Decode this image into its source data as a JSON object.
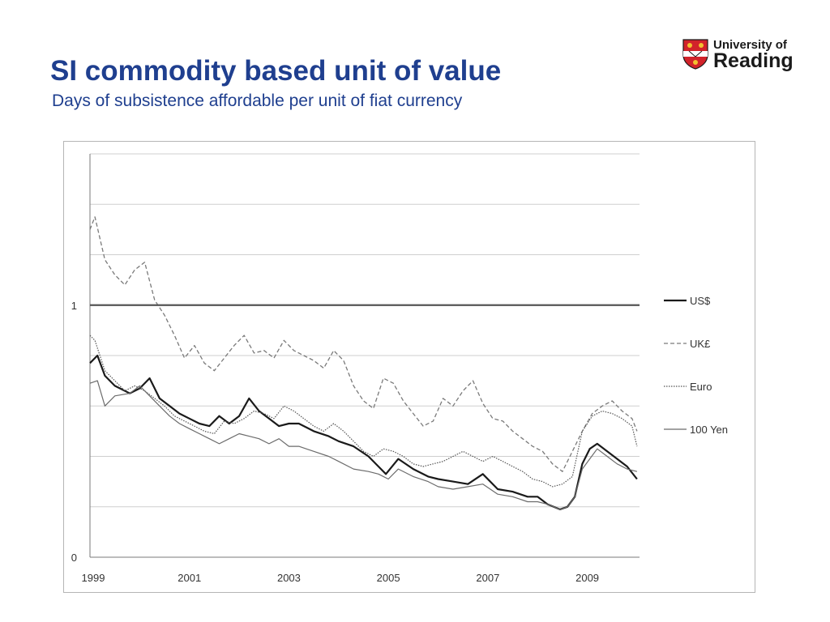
{
  "header": {
    "title": "SI commodity based unit of value",
    "subtitle": "Days of subsistence affordable per unit of fiat currency"
  },
  "logo": {
    "line1": "University of",
    "line2": "Reading",
    "colors": {
      "shield_red": "#d2232a",
      "shield_gold": "#f2c230",
      "text": "#1a1a1a"
    }
  },
  "colors": {
    "title": "#1f3f8f",
    "gridline": "#cfcfcf",
    "axis": "#7a7a7a"
  },
  "chart_data": {
    "type": "line",
    "x_ticks": [
      "1999",
      "2001",
      "2003",
      "2005",
      "2007",
      "2009"
    ],
    "y_tick_labels": [
      "0",
      "1"
    ],
    "xlim": [
      1999,
      2010.05
    ],
    "ylim": [
      0,
      1.6
    ],
    "grid": true,
    "legend_position": "right",
    "series": [
      {
        "name": "US$",
        "style": "solid-thick",
        "color": "#1a1a1a",
        "x": [
          1999,
          1999.15,
          1999.3,
          1999.5,
          1999.8,
          2000,
          2000.2,
          2000.4,
          2000.6,
          2000.8,
          2001,
          2001.2,
          2001.4,
          2001.6,
          2001.8,
          2002,
          2002.2,
          2002.4,
          2002.6,
          2002.8,
          2003,
          2003.2,
          2003.5,
          2003.8,
          2004,
          2004.3,
          2004.6,
          2004.8,
          2004.95,
          2005.2,
          2005.5,
          2005.8,
          2006,
          2006.3,
          2006.6,
          2006.9,
          2007.2,
          2007.5,
          2007.8,
          2008,
          2008.2,
          2008.45,
          2008.6,
          2008.75,
          2008.9,
          2009.05,
          2009.2,
          2009.4,
          2009.6,
          2009.8,
          2010
        ],
        "y": [
          0.77,
          0.8,
          0.72,
          0.68,
          0.65,
          0.67,
          0.71,
          0.63,
          0.6,
          0.57,
          0.55,
          0.53,
          0.52,
          0.56,
          0.53,
          0.56,
          0.63,
          0.58,
          0.55,
          0.52,
          0.53,
          0.53,
          0.5,
          0.48,
          0.46,
          0.44,
          0.4,
          0.36,
          0.33,
          0.39,
          0.35,
          0.32,
          0.31,
          0.3,
          0.29,
          0.33,
          0.27,
          0.26,
          0.24,
          0.24,
          0.21,
          0.19,
          0.2,
          0.24,
          0.37,
          0.43,
          0.45,
          0.42,
          0.39,
          0.36,
          0.31
        ]
      },
      {
        "name": "UK£",
        "style": "dashed",
        "color": "#7a7a7a",
        "x": [
          1999,
          1999.1,
          1999.3,
          1999.5,
          1999.7,
          1999.9,
          2000.1,
          2000.3,
          2000.5,
          2000.7,
          2000.9,
          2001.1,
          2001.3,
          2001.5,
          2001.7,
          2001.9,
          2002.1,
          2002.3,
          2002.5,
          2002.7,
          2002.9,
          2003.1,
          2003.3,
          2003.5,
          2003.7,
          2003.9,
          2004.1,
          2004.3,
          2004.5,
          2004.7,
          2004.9,
          2005.1,
          2005.3,
          2005.5,
          2005.7,
          2005.9,
          2006.1,
          2006.3,
          2006.5,
          2006.7,
          2006.9,
          2007.1,
          2007.3,
          2007.5,
          2007.7,
          2007.9,
          2008.1,
          2008.3,
          2008.5,
          2008.7,
          2008.9,
          2009.1,
          2009.3,
          2009.5,
          2009.7,
          2009.9,
          2010
        ],
        "y": [
          1.3,
          1.35,
          1.18,
          1.12,
          1.08,
          1.14,
          1.17,
          1.02,
          0.96,
          0.88,
          0.79,
          0.84,
          0.77,
          0.74,
          0.79,
          0.84,
          0.88,
          0.81,
          0.82,
          0.79,
          0.86,
          0.82,
          0.8,
          0.78,
          0.75,
          0.82,
          0.78,
          0.68,
          0.62,
          0.59,
          0.71,
          0.69,
          0.62,
          0.57,
          0.52,
          0.54,
          0.63,
          0.6,
          0.66,
          0.7,
          0.61,
          0.55,
          0.54,
          0.5,
          0.47,
          0.44,
          0.42,
          0.37,
          0.34,
          0.42,
          0.5,
          0.57,
          0.6,
          0.62,
          0.58,
          0.55,
          0.5
        ]
      },
      {
        "name": "Euro",
        "style": "dotted",
        "color": "#555555",
        "x": [
          1999,
          1999.1,
          1999.3,
          1999.5,
          1999.7,
          1999.9,
          2000.1,
          2000.3,
          2000.5,
          2000.7,
          2000.9,
          2001.1,
          2001.3,
          2001.5,
          2001.7,
          2001.9,
          2002.1,
          2002.3,
          2002.5,
          2002.7,
          2002.9,
          2003.1,
          2003.3,
          2003.5,
          2003.7,
          2003.9,
          2004.1,
          2004.3,
          2004.5,
          2004.7,
          2004.9,
          2005.1,
          2005.3,
          2005.5,
          2005.7,
          2005.9,
          2006.1,
          2006.3,
          2006.5,
          2006.7,
          2006.9,
          2007.1,
          2007.3,
          2007.5,
          2007.7,
          2007.9,
          2008.1,
          2008.3,
          2008.5,
          2008.7,
          2008.9,
          2009.1,
          2009.3,
          2009.5,
          2009.7,
          2009.9,
          2010
        ],
        "y": [
          0.88,
          0.86,
          0.74,
          0.7,
          0.66,
          0.68,
          0.66,
          0.63,
          0.6,
          0.56,
          0.54,
          0.52,
          0.5,
          0.49,
          0.54,
          0.53,
          0.55,
          0.58,
          0.57,
          0.55,
          0.6,
          0.58,
          0.55,
          0.52,
          0.5,
          0.53,
          0.5,
          0.46,
          0.42,
          0.4,
          0.43,
          0.42,
          0.4,
          0.37,
          0.36,
          0.37,
          0.38,
          0.4,
          0.42,
          0.4,
          0.38,
          0.4,
          0.38,
          0.36,
          0.34,
          0.31,
          0.3,
          0.28,
          0.29,
          0.32,
          0.5,
          0.56,
          0.58,
          0.57,
          0.55,
          0.52,
          0.44
        ]
      },
      {
        "name": "100 Yen",
        "style": "solid-thin",
        "color": "#6b6b6b",
        "x": [
          1999,
          1999.15,
          1999.3,
          1999.5,
          1999.8,
          2000,
          2000.2,
          2000.4,
          2000.6,
          2000.8,
          2001,
          2001.2,
          2001.4,
          2001.6,
          2001.8,
          2002,
          2002.2,
          2002.4,
          2002.6,
          2002.8,
          2003,
          2003.2,
          2003.5,
          2003.8,
          2004,
          2004.3,
          2004.6,
          2004.8,
          2005,
          2005.2,
          2005.5,
          2005.8,
          2006,
          2006.3,
          2006.6,
          2006.9,
          2007.2,
          2007.5,
          2007.8,
          2008,
          2008.2,
          2008.45,
          2008.6,
          2008.75,
          2008.9,
          2009.05,
          2009.2,
          2009.4,
          2009.6,
          2009.8,
          2010
        ],
        "y": [
          0.69,
          0.7,
          0.6,
          0.64,
          0.65,
          0.68,
          0.64,
          0.6,
          0.56,
          0.53,
          0.51,
          0.49,
          0.47,
          0.45,
          0.47,
          0.49,
          0.48,
          0.47,
          0.45,
          0.47,
          0.44,
          0.44,
          0.42,
          0.4,
          0.38,
          0.35,
          0.34,
          0.33,
          0.31,
          0.35,
          0.32,
          0.3,
          0.28,
          0.27,
          0.28,
          0.29,
          0.25,
          0.24,
          0.22,
          0.22,
          0.21,
          0.19,
          0.2,
          0.24,
          0.35,
          0.39,
          0.43,
          0.4,
          0.37,
          0.35,
          0.34
        ]
      }
    ]
  }
}
